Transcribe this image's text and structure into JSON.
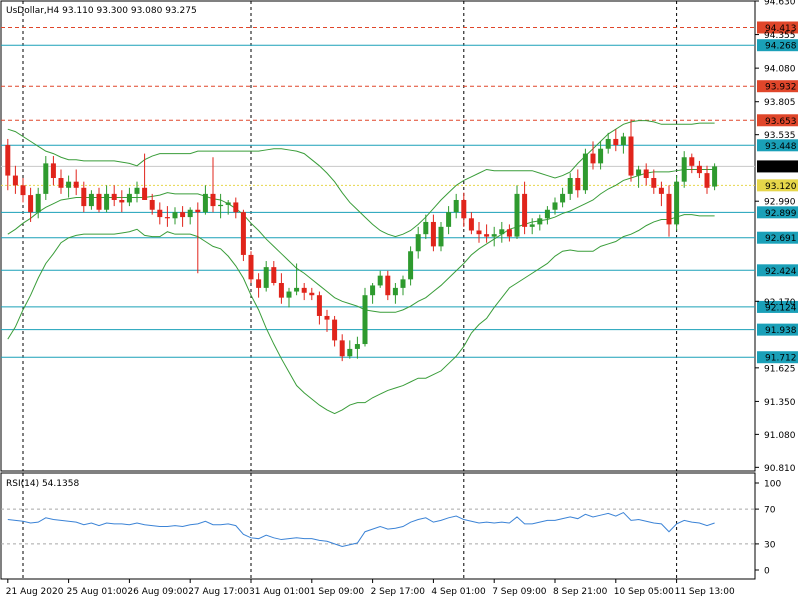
{
  "header": {
    "symbol_text": "UsDollar,H4  93.110 93.300 93.080 93.275",
    "rsi_text": "RSI(14) 54.1358"
  },
  "colors": {
    "bull": "#2e9a2e",
    "bear": "#e0241b",
    "band": "#3a9d3a",
    "level_solid": "#1aa0b8",
    "level_dashed": "#e0462a",
    "current": "#000000",
    "current_label_bg": "#000000",
    "bid_line": "#e6d64a",
    "rsi_line": "#3b83d6",
    "grid_vertical": "#000000",
    "rsi_levels": "#a6a6a6"
  },
  "chart_data": {
    "type": "candlestick",
    "timeframe": "H4",
    "ylim": [
      90.78,
      94.63
    ],
    "price_ticks": [
      "94.630",
      "94.355",
      "94.080",
      "93.805",
      "93.535",
      "92.990",
      "92.170",
      "91.625",
      "91.350",
      "91.080",
      "90.810"
    ],
    "x_tick_labels": [
      "21 Aug 2020",
      "25 Aug 01:00",
      "26 Aug 09:00",
      "27 Aug 17:00",
      "31 Aug 01:00",
      "1 Sep 09:00",
      "2 Sep 17:00",
      "4 Sep 01:00",
      "7 Sep 09:00",
      "8 Sep 21:00",
      "10 Sep 05:00",
      "11 Sep 13:00"
    ],
    "x_tick_slots": [
      0,
      8,
      16,
      24,
      32,
      40,
      48,
      56,
      64,
      72,
      80,
      88
    ],
    "vertical_grid_slots": [
      2,
      32,
      60,
      88
    ],
    "current_price": "93.275",
    "bid_price": "93.120",
    "levels": [
      {
        "price": "94.413",
        "style": "dashed"
      },
      {
        "price": "94.268",
        "style": "solid"
      },
      {
        "price": "93.932",
        "style": "dashed"
      },
      {
        "price": "93.653",
        "style": "dashed"
      },
      {
        "price": "93.448",
        "style": "solid"
      },
      {
        "price": "92.899",
        "style": "solid"
      },
      {
        "price": "92.691",
        "style": "solid"
      },
      {
        "price": "92.424",
        "style": "solid"
      },
      {
        "price": "92.124",
        "style": "solid"
      },
      {
        "price": "91.938",
        "style": "solid"
      },
      {
        "price": "91.712",
        "style": "solid"
      }
    ],
    "ohlc": [
      [
        93.45,
        93.5,
        93.08,
        93.2
      ],
      [
        93.2,
        93.28,
        93.05,
        93.12
      ],
      [
        93.12,
        93.18,
        92.98,
        93.04
      ],
      [
        93.04,
        93.1,
        92.82,
        92.9
      ],
      [
        92.9,
        93.1,
        92.85,
        93.05
      ],
      [
        93.05,
        93.36,
        93.0,
        93.3
      ],
      [
        93.3,
        93.36,
        93.12,
        93.18
      ],
      [
        93.18,
        93.25,
        93.05,
        93.1
      ],
      [
        93.1,
        93.2,
        93.02,
        93.15
      ],
      [
        93.15,
        93.25,
        93.04,
        93.1
      ],
      [
        93.1,
        93.15,
        92.9,
        92.95
      ],
      [
        92.95,
        93.08,
        92.92,
        93.05
      ],
      [
        93.05,
        93.1,
        92.9,
        92.92
      ],
      [
        92.92,
        93.12,
        92.9,
        93.05
      ],
      [
        93.05,
        93.12,
        92.95,
        93.0
      ],
      [
        93.0,
        93.08,
        92.9,
        92.98
      ],
      [
        92.98,
        93.1,
        92.95,
        93.05
      ],
      [
        93.05,
        93.15,
        92.98,
        93.1
      ],
      [
        93.1,
        93.38,
        93.0,
        93.0
      ],
      [
        93.0,
        93.05,
        92.88,
        92.92
      ],
      [
        92.92,
        92.98,
        92.8,
        92.86
      ],
      [
        92.86,
        92.95,
        92.78,
        92.85
      ],
      [
        92.85,
        92.94,
        92.8,
        92.9
      ],
      [
        92.9,
        92.95,
        92.78,
        92.86
      ],
      [
        92.86,
        92.94,
        92.8,
        92.92
      ],
      [
        92.92,
        92.98,
        92.4,
        92.9
      ],
      [
        92.9,
        93.12,
        92.88,
        93.05
      ],
      [
        93.05,
        93.35,
        92.9,
        92.95
      ],
      [
        92.95,
        93.05,
        92.85,
        92.96
      ],
      [
        92.96,
        93.0,
        92.88,
        92.98
      ],
      [
        92.98,
        93.02,
        92.85,
        92.9
      ],
      [
        92.9,
        92.92,
        92.5,
        92.55
      ],
      [
        92.55,
        92.58,
        92.32,
        92.35
      ],
      [
        92.35,
        92.4,
        92.2,
        92.28
      ],
      [
        92.28,
        92.5,
        92.25,
        92.45
      ],
      [
        92.45,
        92.5,
        92.3,
        92.32
      ],
      [
        92.32,
        92.4,
        92.15,
        92.2
      ],
      [
        92.2,
        92.28,
        92.12,
        92.25
      ],
      [
        92.25,
        92.48,
        92.22,
        92.28
      ],
      [
        92.28,
        92.32,
        92.18,
        92.24
      ],
      [
        92.24,
        92.28,
        92.18,
        92.22
      ],
      [
        92.22,
        92.25,
        91.98,
        92.05
      ],
      [
        92.05,
        92.1,
        91.92,
        92.02
      ],
      [
        92.02,
        92.05,
        91.8,
        91.85
      ],
      [
        91.85,
        91.9,
        91.68,
        91.72
      ],
      [
        91.72,
        91.85,
        91.7,
        91.78
      ],
      [
        91.78,
        91.88,
        91.7,
        91.82
      ],
      [
        91.82,
        92.28,
        91.8,
        92.22
      ],
      [
        92.22,
        92.32,
        92.15,
        92.3
      ],
      [
        92.3,
        92.42,
        92.28,
        92.38
      ],
      [
        92.38,
        92.42,
        92.18,
        92.22
      ],
      [
        92.22,
        92.32,
        92.15,
        92.28
      ],
      [
        92.28,
        92.38,
        92.22,
        92.35
      ],
      [
        92.35,
        92.62,
        92.3,
        92.58
      ],
      [
        92.58,
        92.78,
        92.52,
        92.72
      ],
      [
        92.72,
        92.88,
        92.68,
        92.82
      ],
      [
        92.82,
        92.88,
        92.58,
        92.62
      ],
      [
        92.62,
        92.82,
        92.58,
        92.78
      ],
      [
        92.78,
        92.95,
        92.72,
        92.9
      ],
      [
        92.9,
        93.05,
        92.85,
        93.0
      ],
      [
        93.0,
        93.06,
        92.78,
        92.85
      ],
      [
        92.85,
        92.9,
        92.72,
        92.75
      ],
      [
        92.75,
        92.82,
        92.65,
        92.72
      ],
      [
        92.72,
        92.8,
        92.65,
        92.7
      ],
      [
        92.7,
        92.78,
        92.62,
        92.72
      ],
      [
        92.72,
        92.82,
        92.65,
        92.76
      ],
      [
        92.76,
        92.8,
        92.66,
        92.7
      ],
      [
        92.7,
        93.12,
        92.68,
        93.05
      ],
      [
        93.05,
        93.15,
        92.72,
        92.78
      ],
      [
        92.78,
        92.85,
        92.72,
        92.8
      ],
      [
        92.8,
        92.88,
        92.75,
        92.85
      ],
      [
        92.85,
        92.95,
        92.8,
        92.92
      ],
      [
        92.92,
        93.02,
        92.88,
        92.98
      ],
      [
        92.98,
        93.1,
        92.94,
        93.05
      ],
      [
        93.05,
        93.22,
        93.0,
        93.18
      ],
      [
        93.18,
        93.25,
        93.02,
        93.08
      ],
      [
        93.08,
        93.42,
        93.05,
        93.38
      ],
      [
        93.38,
        93.48,
        93.25,
        93.3
      ],
      [
        93.3,
        93.48,
        93.25,
        93.42
      ],
      [
        93.42,
        93.55,
        93.38,
        93.5
      ],
      [
        93.5,
        93.58,
        93.4,
        93.45
      ],
      [
        93.45,
        93.55,
        93.38,
        93.52
      ],
      [
        93.52,
        93.66,
        93.15,
        93.2
      ],
      [
        93.2,
        93.28,
        93.1,
        93.25
      ],
      [
        93.25,
        93.3,
        93.12,
        93.18
      ],
      [
        93.18,
        93.25,
        93.05,
        93.1
      ],
      [
        93.1,
        93.15,
        92.95,
        93.05
      ],
      [
        93.05,
        93.12,
        92.7,
        92.8
      ],
      [
        92.8,
        93.2,
        92.75,
        93.15
      ],
      [
        93.15,
        93.4,
        93.1,
        93.35
      ],
      [
        93.35,
        93.38,
        93.22,
        93.28
      ],
      [
        93.28,
        93.32,
        93.18,
        93.22
      ],
      [
        93.22,
        93.28,
        93.05,
        93.1
      ],
      [
        93.11,
        93.3,
        93.08,
        93.275
      ]
    ],
    "bollinger": {
      "upper": [
        93.58,
        93.56,
        93.52,
        93.48,
        93.44,
        93.4,
        93.38,
        93.35,
        93.33,
        93.33,
        93.32,
        93.32,
        93.32,
        93.32,
        93.32,
        93.31,
        93.3,
        93.28,
        93.33,
        93.36,
        93.38,
        93.38,
        93.38,
        93.38,
        93.38,
        93.4,
        93.4,
        93.4,
        93.4,
        93.4,
        93.4,
        93.4,
        93.4,
        93.4,
        93.41,
        93.42,
        93.42,
        93.41,
        93.4,
        93.38,
        93.33,
        93.28,
        93.22,
        93.15,
        93.06,
        92.98,
        92.92,
        92.86,
        92.8,
        92.75,
        92.72,
        92.7,
        92.72,
        92.75,
        92.8,
        92.86,
        92.93,
        93.0,
        93.06,
        93.12,
        93.16,
        93.19,
        93.22,
        93.25,
        93.24,
        93.24,
        93.24,
        93.24,
        93.24,
        93.24,
        93.22,
        93.2,
        93.18,
        93.2,
        93.23,
        93.3,
        93.36,
        93.42,
        93.48,
        93.54,
        93.58,
        93.62,
        93.64,
        93.65,
        93.65,
        93.64,
        93.62,
        93.62,
        93.62,
        93.62,
        93.62,
        93.63,
        93.63,
        93.63
      ],
      "middle": [
        92.72,
        92.76,
        92.81,
        92.85,
        92.9,
        92.94,
        92.97,
        93.0,
        93.01,
        93.02,
        93.02,
        93.02,
        93.02,
        93.02,
        93.02,
        93.02,
        93.02,
        93.02,
        93.02,
        93.03,
        93.04,
        93.06,
        93.05,
        93.05,
        93.05,
        93.05,
        93.03,
        93.01,
        93.0,
        92.97,
        92.93,
        92.88,
        92.81,
        92.75,
        92.68,
        92.62,
        92.56,
        92.5,
        92.44,
        92.4,
        92.35,
        92.3,
        92.25,
        92.2,
        92.17,
        92.15,
        92.13,
        92.1,
        92.09,
        92.08,
        92.08,
        92.08,
        92.1,
        92.13,
        92.17,
        92.2,
        92.25,
        92.3,
        92.36,
        92.42,
        92.48,
        92.55,
        92.6,
        92.64,
        92.68,
        92.72,
        92.76,
        92.78,
        92.8,
        92.82,
        92.83,
        92.84,
        92.86,
        92.89,
        92.91,
        92.94,
        92.97,
        93.0,
        93.05,
        93.09,
        93.12,
        93.16,
        93.18,
        93.2,
        93.22,
        93.23,
        93.23,
        93.23,
        93.24,
        93.25,
        93.25,
        93.25,
        93.25,
        93.25
      ],
      "lower": [
        91.86,
        91.96,
        92.1,
        92.22,
        92.36,
        92.48,
        92.56,
        92.65,
        92.69,
        92.71,
        92.72,
        92.72,
        92.72,
        92.72,
        92.72,
        92.73,
        92.74,
        92.76,
        92.71,
        92.7,
        92.7,
        92.74,
        92.72,
        92.72,
        92.72,
        92.7,
        92.66,
        92.62,
        92.6,
        92.54,
        92.46,
        92.36,
        92.22,
        92.1,
        91.95,
        91.82,
        91.7,
        91.59,
        91.48,
        91.42,
        91.37,
        91.32,
        91.28,
        91.25,
        91.28,
        91.32,
        91.34,
        91.34,
        91.38,
        91.41,
        91.44,
        91.46,
        91.48,
        91.51,
        91.54,
        91.54,
        91.57,
        91.6,
        91.66,
        91.72,
        91.8,
        91.91,
        91.98,
        92.03,
        92.12,
        92.2,
        92.28,
        92.32,
        92.36,
        92.4,
        92.44,
        92.48,
        92.54,
        92.58,
        92.59,
        92.58,
        92.58,
        92.58,
        92.62,
        92.64,
        92.66,
        92.7,
        92.72,
        92.75,
        92.79,
        92.82,
        92.84,
        92.84,
        92.86,
        92.88,
        92.88,
        92.87,
        92.87,
        92.87
      ]
    },
    "rsi": {
      "label": "RSI(14) 54.1358",
      "ylim": [
        0,
        100
      ],
      "ticks": [
        "100",
        "70",
        "30",
        "0"
      ],
      "levels": [
        70,
        30
      ],
      "values": [
        58,
        57,
        56,
        54,
        55,
        60,
        58,
        57,
        56,
        55,
        52,
        54,
        51,
        54,
        53,
        53,
        52,
        54,
        52,
        51,
        50,
        50,
        51,
        50,
        52,
        53,
        56,
        52,
        52,
        53,
        51,
        41,
        37,
        36,
        40,
        37,
        35,
        36,
        37,
        36,
        36,
        34,
        33,
        30,
        27,
        29,
        31,
        44,
        47,
        50,
        47,
        48,
        50,
        55,
        58,
        60,
        55,
        57,
        60,
        62,
        58,
        56,
        54,
        55,
        54,
        55,
        54,
        61,
        53,
        53,
        55,
        57,
        57,
        59,
        61,
        59,
        64,
        61,
        63,
        65,
        62,
        66,
        57,
        58,
        56,
        54,
        53,
        44,
        53,
        57,
        55,
        54,
        51,
        54
      ]
    }
  }
}
